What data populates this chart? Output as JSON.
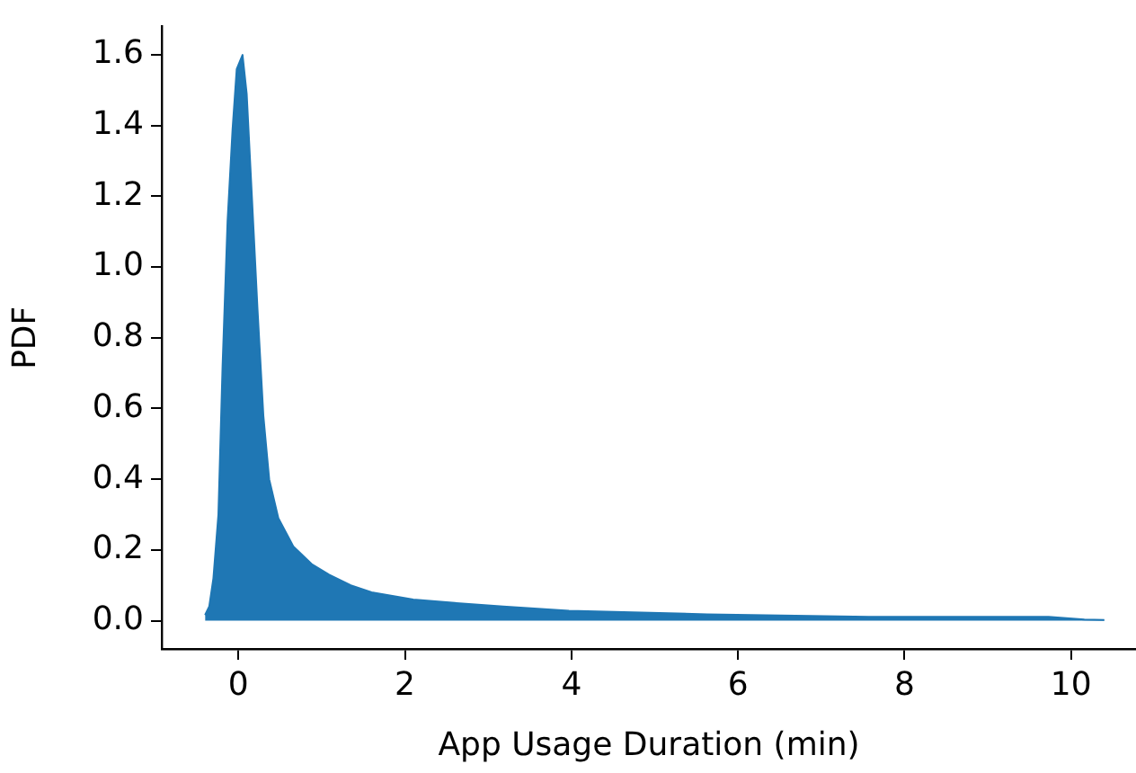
{
  "chart_data": {
    "type": "area",
    "xlabel": "App Usage Duration (min)",
    "ylabel": "PDF",
    "xlim": [
      -0.92,
      10.78
    ],
    "xticks": [
      0,
      2,
      4,
      6,
      8,
      10
    ],
    "ylim": [
      -0.08,
      1.68
    ],
    "yticks": [
      {
        "value": 0,
        "label": "0.0"
      },
      {
        "value": 0.2,
        "label": "0.2"
      },
      {
        "value": 0.4,
        "label": "0.4"
      },
      {
        "value": 0.6,
        "label": "0.6"
      },
      {
        "value": 0.8,
        "label": "0.8"
      },
      {
        "value": 1,
        "label": "1.0"
      },
      {
        "value": 1.2,
        "label": "1.2"
      },
      {
        "value": 1.4,
        "label": "1.4"
      },
      {
        "value": 1.6,
        "label": "1.6"
      }
    ],
    "grid": false,
    "legend": false,
    "series": [
      {
        "color": "#1f77b4",
        "x": [
          -0.4,
          -0.35,
          -0.3,
          -0.24,
          -0.19,
          -0.13,
          -0.07,
          -0.02,
          0.05,
          0.1,
          0.16,
          0.23,
          0.3,
          0.37,
          0.48,
          0.66,
          0.88,
          1.09,
          1.35,
          1.6,
          2.1,
          2.6,
          3.18,
          3.97,
          5.63,
          7.57,
          9.73,
          10.16,
          10.4
        ],
        "values": [
          0.016,
          0.04,
          0.12,
          0.3,
          0.72,
          1.13,
          1.39,
          1.56,
          1.6,
          1.49,
          1.21,
          0.88,
          0.58,
          0.4,
          0.29,
          0.21,
          0.16,
          0.13,
          0.1,
          0.08,
          0.06,
          0.05,
          0.04,
          0.028,
          0.018,
          0.011,
          0.011,
          0.003,
          0.002
        ]
      }
    ]
  }
}
